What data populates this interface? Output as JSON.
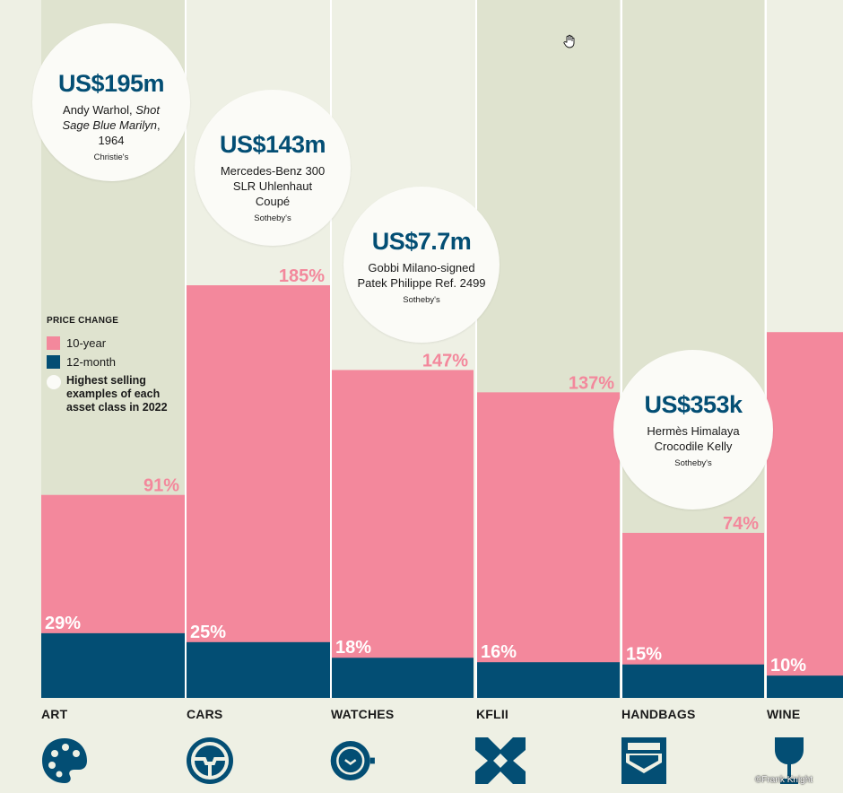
{
  "chart_data": {
    "type": "bar",
    "title": "",
    "categories": [
      "ART",
      "CARS",
      "WATCHES",
      "KFLII",
      "HANDBAGS",
      "WINE"
    ],
    "series": [
      {
        "name": "10-year",
        "values": [
          91,
          185,
          147,
          137,
          74,
          164
        ]
      },
      {
        "name": "12-month",
        "values": [
          29,
          25,
          18,
          16,
          15,
          10
        ]
      }
    ],
    "ylim": [
      0,
      185
    ],
    "labels_10y": [
      "91%",
      "185%",
      "147%",
      "137%",
      "74%",
      ""
    ],
    "labels_12m": [
      "29%",
      "25%",
      "18%",
      "16%",
      "15%",
      "10%"
    ],
    "legend_position": "left-middle"
  },
  "legend": {
    "title": "PRICE CHANGE",
    "items": [
      {
        "label": "10-year",
        "color": "#f3889c"
      },
      {
        "label": "12-month",
        "color": "#034e74"
      },
      {
        "label": "Highest selling examples of each asset class in 2022",
        "color": "#fbfbf7"
      }
    ]
  },
  "highlights": [
    {
      "price": "US$195m",
      "desc_html_parts": [
        "Andy Warhol, ",
        "Shot Sage Blue Marilyn",
        ", 1964"
      ],
      "source": "Christie's"
    },
    {
      "price": "US$143m",
      "desc": "Mercedes-Benz 300 SLR Uhlenhaut Coupé",
      "source": "Sotheby's"
    },
    {
      "price": "US$7.7m",
      "desc": "Gobbi Milano-signed Patek Philippe Ref. 2499",
      "source": "Sotheby's"
    },
    {
      "price": "US$353k",
      "desc": "Hermès Himalaya Crocodile Kelly",
      "source": "Sotheby's"
    }
  ],
  "icons": [
    "palette-icon",
    "steering-wheel-icon",
    "watch-icon",
    "kflii-icon",
    "handbag-icon",
    "wine-glass-icon"
  ],
  "credit": "©Frank Knight",
  "colors": {
    "pink": "#f3889c",
    "navy": "#034e74",
    "background": "#eef0e4",
    "column_shade": "#dfe3cf",
    "bubble": "#fbfbf7"
  }
}
